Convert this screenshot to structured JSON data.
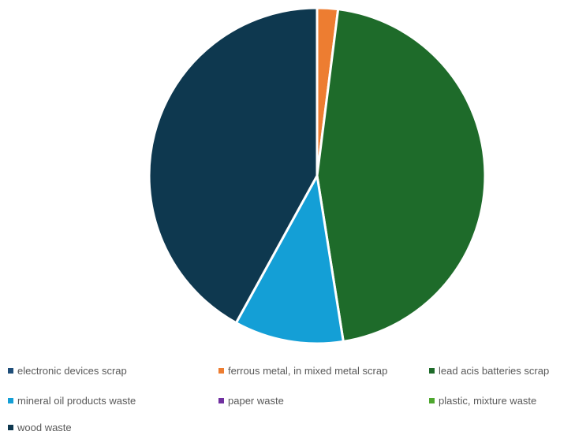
{
  "chart_data": {
    "type": "pie",
    "title": "",
    "categories": [
      "electronic devices scrap",
      "ferrous metal, in mixed metal scrap",
      "lead acis batteries scrap",
      "mineral oil products waste",
      "paper waste",
      "plastic, mixture waste",
      "wood waste"
    ],
    "values": [
      0.0,
      2.0,
      45.5,
      10.5,
      0.0,
      0.0,
      42.0
    ],
    "colors": [
      "#1f4e79",
      "#ed7d31",
      "#1e6b2a",
      "#149fd6",
      "#7030a0",
      "#4ea72e",
      "#0e384f"
    ],
    "legend_position": "bottom"
  }
}
